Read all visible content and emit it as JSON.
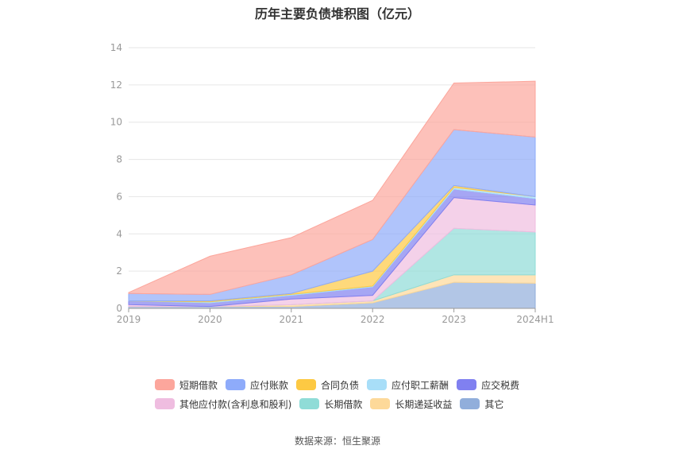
{
  "chart_data": {
    "type": "area",
    "stacked": true,
    "title": "历年主要负债堆积图（亿元）",
    "source": "数据来源：恒生聚源",
    "x": [
      "2019",
      "2020",
      "2021",
      "2022",
      "2023",
      "2024H1"
    ],
    "yticks": [
      "0",
      "2",
      "4",
      "6",
      "8",
      "10",
      "12",
      "14"
    ],
    "ylim": [
      0,
      14
    ],
    "grid": true,
    "legend_position": "bottom",
    "series": [
      {
        "name": "其它",
        "color": "#91aedb",
        "values": [
          0.1,
          0.1,
          0.1,
          0.3,
          1.4,
          1.35
        ]
      },
      {
        "name": "长期递延收益",
        "color": "#fdd999",
        "values": [
          0.0,
          0.0,
          0.1,
          0.1,
          0.4,
          0.45
        ]
      },
      {
        "name": "长期借款",
        "color": "#8fdcd7",
        "values": [
          0.0,
          0.0,
          0.0,
          0.0,
          2.5,
          2.3
        ]
      },
      {
        "name": "其他应付款(含利息和股利)",
        "color": "#efbde0",
        "values": [
          0.1,
          0.0,
          0.3,
          0.3,
          1.65,
          1.45
        ]
      },
      {
        "name": "应交税费",
        "color": "#8080f0",
        "values": [
          0.2,
          0.2,
          0.2,
          0.45,
          0.45,
          0.35
        ]
      },
      {
        "name": "应付职工薪酬",
        "color": "#a8def8",
        "values": [
          0.0,
          0.05,
          0.05,
          0.05,
          0.1,
          0.1
        ]
      },
      {
        "name": "合同负债",
        "color": "#fdc943",
        "values": [
          0.0,
          0.05,
          0.05,
          0.8,
          0.1,
          0.0
        ]
      },
      {
        "name": "应付账款",
        "color": "#8eabfa",
        "values": [
          0.4,
          0.35,
          1.0,
          1.7,
          3.0,
          3.2
        ]
      },
      {
        "name": "短期借款",
        "color": "#fca69c",
        "values": [
          0.05,
          2.05,
          2.0,
          2.1,
          2.5,
          3.0
        ]
      }
    ],
    "legend_rows": [
      [
        "短期借款",
        "应付账款",
        "合同负债",
        "应付职工薪酬",
        "应交税费"
      ],
      [
        "其他应付款(含利息和股利)",
        "长期借款",
        "长期递延收益",
        "其它"
      ]
    ]
  }
}
